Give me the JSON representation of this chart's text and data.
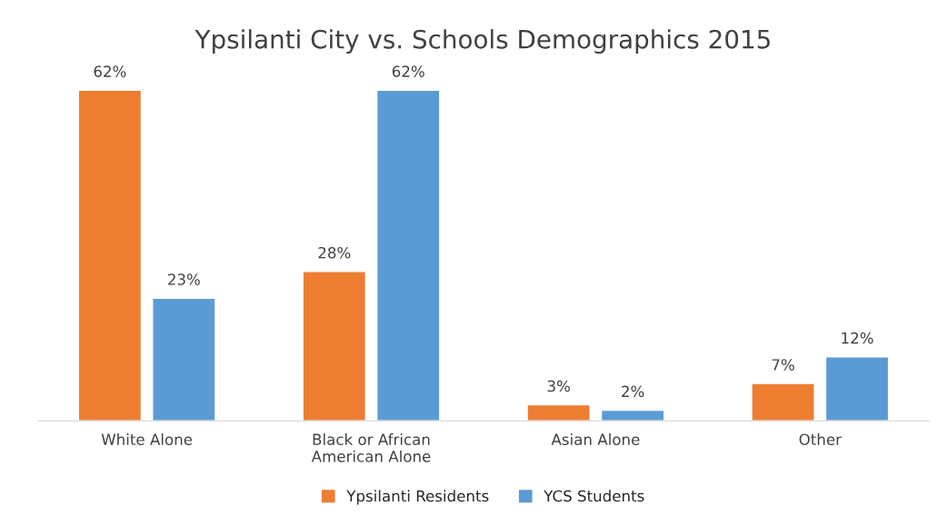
{
  "chart_data": {
    "type": "bar",
    "title": "Ypsilanti City vs. Schools Demographics 2015",
    "categories": [
      "White Alone",
      "Black or African American Alone",
      "Asian Alone",
      "Other"
    ],
    "series": [
      {
        "name": "Ypsilanti Residents",
        "color": "#ed7d31",
        "values": [
          62,
          28,
          3,
          7
        ],
        "value_labels": [
          "62%",
          "28%",
          "3%",
          "7%"
        ]
      },
      {
        "name": "YCS Students",
        "color": "#5b9bd5",
        "values": [
          23,
          62,
          2,
          12
        ],
        "value_labels": [
          "23%",
          "62%",
          "2%",
          "12%"
        ]
      }
    ],
    "legend": "bottom",
    "grid": false
  }
}
